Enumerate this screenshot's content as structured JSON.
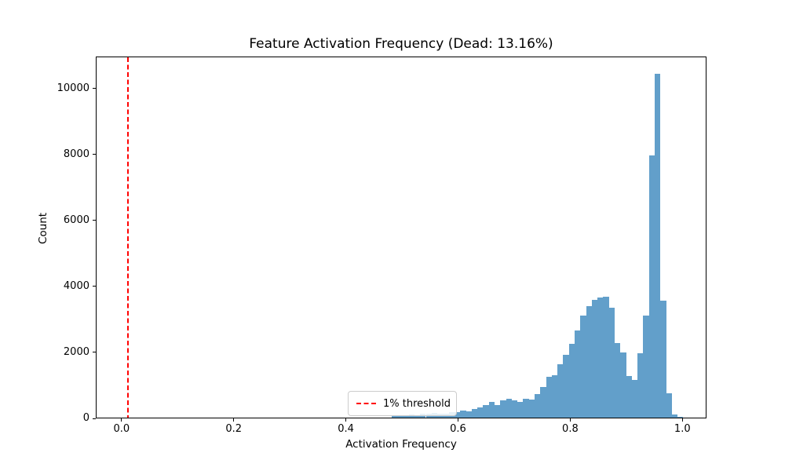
{
  "title": "Feature Activation Frequency (Dead: 13.16%)",
  "chart_data": {
    "type": "bar",
    "subtype": "histogram",
    "title": "Feature Activation Frequency (Dead: 13.16%)",
    "xlabel": "Activation Frequency",
    "ylabel": "Count",
    "xlim": [
      -0.046,
      1.043
    ],
    "ylim": [
      0,
      10966
    ],
    "grid": false,
    "x_ticks": [
      0.0,
      0.2,
      0.4,
      0.6,
      0.8,
      1.0
    ],
    "x_tick_labels": [
      "0.0",
      "0.2",
      "0.4",
      "0.6",
      "0.8",
      "1.0"
    ],
    "y_ticks": [
      0,
      2000,
      4000,
      6000,
      8000,
      10000
    ],
    "y_tick_labels": [
      "0",
      "2000",
      "4000",
      "6000",
      "8000",
      "10000"
    ],
    "bar_color": "#629fca",
    "bin_start": 0.48,
    "bin_width": 0.0102,
    "counts": [
      40,
      40,
      65,
      95,
      70,
      110,
      110,
      150,
      125,
      125,
      165,
      165,
      215,
      190,
      255,
      310,
      375,
      480,
      370,
      530,
      565,
      515,
      485,
      570,
      540,
      720,
      930,
      1230,
      1285,
      1620,
      1900,
      2230,
      2650,
      3090,
      3390,
      3560,
      3640,
      3660,
      3340,
      2255,
      1975,
      1260,
      1140,
      1950,
      3090,
      7950,
      10430,
      3550,
      745,
      90,
      20
    ],
    "threshold": {
      "x": 0.01,
      "color": "#ff0000",
      "style": "dashed",
      "label": "1% threshold"
    },
    "legend": {
      "position": "lower center",
      "entries": [
        "1% threshold"
      ]
    }
  }
}
